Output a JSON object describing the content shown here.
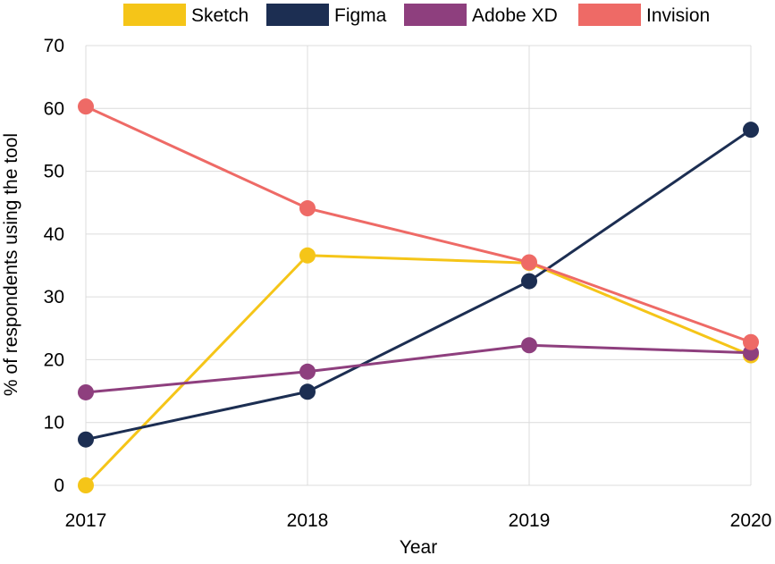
{
  "chart_data": {
    "type": "line",
    "title": "",
    "xlabel": "Year",
    "ylabel": "% of respondents using the tool",
    "categories": [
      "2017",
      "2018",
      "2019",
      "2020"
    ],
    "yticks": [
      "0",
      "10",
      "20",
      "30",
      "40",
      "50",
      "60",
      "70"
    ],
    "ylim": [
      0,
      70
    ],
    "grid": true,
    "legend_position": "top",
    "series": [
      {
        "name": "Sketch",
        "color": "#F5C518",
        "values": [
          0,
          36.6,
          35.4,
          20.7
        ]
      },
      {
        "name": "Figma",
        "color": "#1C2E52",
        "values": [
          7.3,
          14.9,
          32.5,
          56.6
        ]
      },
      {
        "name": "Adobe XD",
        "color": "#8E3F7E",
        "values": [
          14.8,
          18.1,
          22.3,
          21.1
        ]
      },
      {
        "name": "Invision",
        "color": "#EE6A66",
        "values": [
          60.3,
          44.1,
          35.5,
          22.8
        ]
      }
    ]
  }
}
